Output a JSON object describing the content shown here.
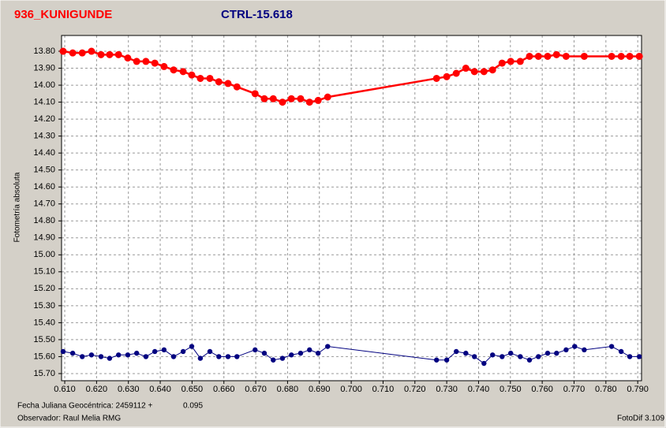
{
  "chart_data": {
    "type": "line",
    "y_label": "Fotometría absoluta",
    "footer": {
      "date_label": "Fecha Juliana Geocéntrica: 2459112 +",
      "date_offset": "0.095",
      "observer": "Observador: Raul Melia RMG",
      "software": "FotoDif 3.109"
    },
    "xlim": [
      0.609,
      0.7912
    ],
    "ylim": [
      13.707,
      15.742
    ],
    "inverted_y": true,
    "grid": true,
    "xticks": [
      {
        "value": 0.61,
        "label": "0.610"
      },
      {
        "value": 0.62,
        "label": "0.620"
      },
      {
        "value": 0.63,
        "label": "0.630"
      },
      {
        "value": 0.64,
        "label": "0.640"
      },
      {
        "value": 0.65,
        "label": "0.650"
      },
      {
        "value": 0.66,
        "label": "0.660"
      },
      {
        "value": 0.67,
        "label": "0.670"
      },
      {
        "value": 0.68,
        "label": "0.680"
      },
      {
        "value": 0.69,
        "label": "0.690"
      },
      {
        "value": 0.7,
        "label": "0.700"
      },
      {
        "value": 0.71,
        "label": "0.710"
      },
      {
        "value": 0.72,
        "label": "0.720"
      },
      {
        "value": 0.73,
        "label": "0.730"
      },
      {
        "value": 0.74,
        "label": "0.740"
      },
      {
        "value": 0.75,
        "label": "0.750"
      },
      {
        "value": 0.76,
        "label": "0.760"
      },
      {
        "value": 0.77,
        "label": "0.770"
      },
      {
        "value": 0.78,
        "label": "0.780"
      },
      {
        "value": 0.79,
        "label": "0.790"
      }
    ],
    "yticks": [
      {
        "value": 13.8,
        "label": "13.80"
      },
      {
        "value": 13.9,
        "label": "13.90"
      },
      {
        "value": 14.0,
        "label": "14.00"
      },
      {
        "value": 14.1,
        "label": "14.10"
      },
      {
        "value": 14.2,
        "label": "14.20"
      },
      {
        "value": 14.3,
        "label": "14.30"
      },
      {
        "value": 14.4,
        "label": "14.40"
      },
      {
        "value": 14.5,
        "label": "14.50"
      },
      {
        "value": 14.6,
        "label": "14.60"
      },
      {
        "value": 14.7,
        "label": "14.70"
      },
      {
        "value": 14.8,
        "label": "14.80"
      },
      {
        "value": 14.9,
        "label": "14.90"
      },
      {
        "value": 15.0,
        "label": "15.00"
      },
      {
        "value": 15.1,
        "label": "15.10"
      },
      {
        "value": 15.2,
        "label": "15.20"
      },
      {
        "value": 15.3,
        "label": "15.30"
      },
      {
        "value": 15.4,
        "label": "15.40"
      },
      {
        "value": 15.5,
        "label": "15.50"
      },
      {
        "value": 15.6,
        "label": "15.60"
      },
      {
        "value": 15.7,
        "label": "15.70"
      }
    ],
    "series": [
      {
        "name": "936_KUNIGUNDE",
        "color": "#ff0000",
        "x": [
          0.6095,
          0.6125,
          0.6155,
          0.6184,
          0.6214,
          0.6241,
          0.6269,
          0.6298,
          0.6326,
          0.6355,
          0.6383,
          0.6412,
          0.6442,
          0.6472,
          0.6499,
          0.6526,
          0.6556,
          0.6584,
          0.6613,
          0.6641,
          0.6698,
          0.6727,
          0.6755,
          0.6784,
          0.6812,
          0.6841,
          0.6869,
          0.6896,
          0.6926,
          0.7268,
          0.73,
          0.733,
          0.736,
          0.7387,
          0.7417,
          0.7444,
          0.7474,
          0.7501,
          0.7531,
          0.756,
          0.7588,
          0.7617,
          0.7645,
          0.7675,
          0.7732,
          0.7818,
          0.7848,
          0.7875,
          0.7905
        ],
        "values": [
          13.8,
          13.81,
          13.81,
          13.8,
          13.82,
          13.82,
          13.82,
          13.84,
          13.86,
          13.86,
          13.87,
          13.89,
          13.91,
          13.92,
          13.94,
          13.96,
          13.96,
          13.98,
          13.99,
          14.01,
          14.05,
          14.08,
          14.08,
          14.1,
          14.08,
          14.08,
          14.1,
          14.09,
          14.07,
          13.96,
          13.95,
          13.93,
          13.9,
          13.92,
          13.92,
          13.91,
          13.87,
          13.86,
          13.86,
          13.83,
          13.83,
          13.83,
          13.82,
          13.83,
          13.83,
          13.83,
          13.83,
          13.83,
          13.83
        ]
      },
      {
        "name": "CTRL-15.618",
        "color": "#000080",
        "x": [
          0.6095,
          0.6125,
          0.6155,
          0.6184,
          0.6214,
          0.6241,
          0.6269,
          0.6298,
          0.6326,
          0.6355,
          0.6383,
          0.6412,
          0.6442,
          0.6472,
          0.6499,
          0.6526,
          0.6556,
          0.6584,
          0.6613,
          0.6641,
          0.6698,
          0.6727,
          0.6755,
          0.6784,
          0.6812,
          0.6841,
          0.6869,
          0.6896,
          0.6926,
          0.7268,
          0.73,
          0.733,
          0.736,
          0.7387,
          0.7417,
          0.7444,
          0.7474,
          0.7501,
          0.7531,
          0.756,
          0.7588,
          0.7617,
          0.7645,
          0.7675,
          0.7702,
          0.7732,
          0.7818,
          0.7848,
          0.7875,
          0.7905
        ],
        "values": [
          15.57,
          15.58,
          15.6,
          15.59,
          15.6,
          15.61,
          15.59,
          15.59,
          15.58,
          15.6,
          15.57,
          15.56,
          15.6,
          15.57,
          15.54,
          15.61,
          15.57,
          15.6,
          15.6,
          15.6,
          15.56,
          15.58,
          15.62,
          15.61,
          15.59,
          15.58,
          15.56,
          15.58,
          15.54,
          15.62,
          15.62,
          15.57,
          15.58,
          15.6,
          15.64,
          15.59,
          15.6,
          15.58,
          15.6,
          15.62,
          15.6,
          15.58,
          15.58,
          15.56,
          15.54,
          15.56,
          15.54,
          15.57,
          15.6,
          15.6
        ]
      }
    ]
  }
}
